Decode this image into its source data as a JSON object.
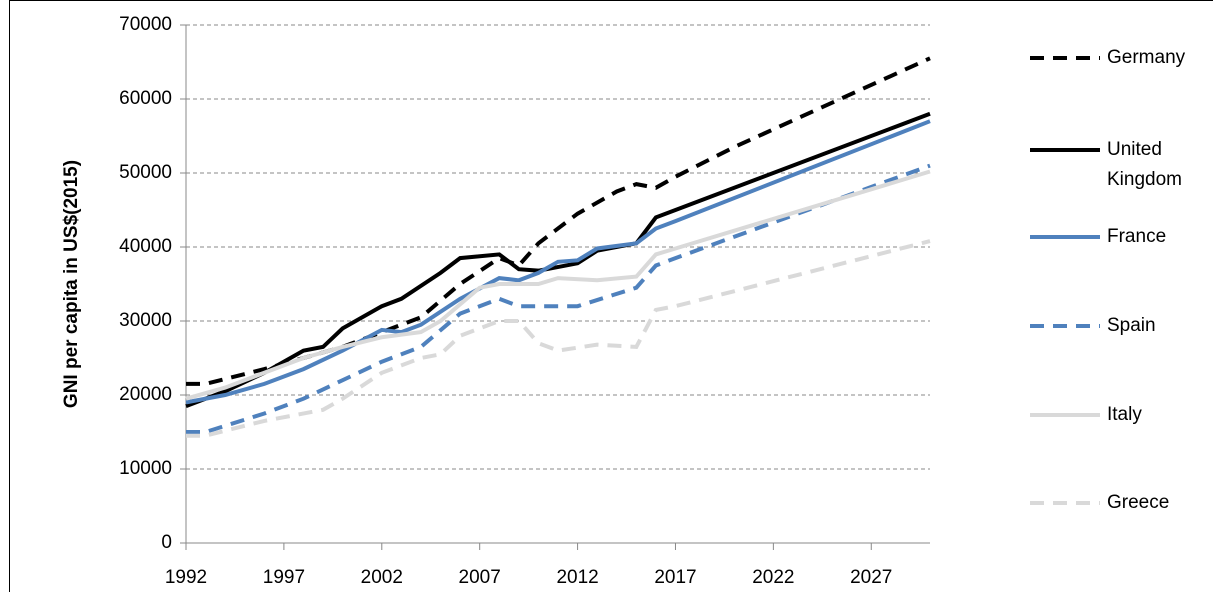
{
  "chart_data": {
    "type": "line",
    "ylabel": "GNI per capita in US$(2015)",
    "xlim": [
      1992,
      2030
    ],
    "xticks": [
      1992,
      1997,
      2002,
      2007,
      2012,
      2017,
      2022,
      2027
    ],
    "ylim": [
      0,
      70000
    ],
    "yticks": [
      0,
      10000,
      20000,
      30000,
      40000,
      50000,
      60000,
      70000
    ],
    "grid": true,
    "legend": "right",
    "series": [
      {
        "name": "Germany",
        "color": "#000000",
        "dashed": true,
        "x": [
          1992,
          1993,
          1996,
          1998,
          2000,
          2002,
          2004,
          2006,
          2008,
          2009,
          2010,
          2012,
          2014,
          2015,
          2016,
          2017,
          2020,
          2025,
          2030
        ],
        "values": [
          21500,
          21500,
          23500,
          25000,
          26500,
          28500,
          30500,
          35000,
          38500,
          37500,
          40500,
          44500,
          47500,
          48500,
          48000,
          49500,
          53500,
          59500,
          65500
        ]
      },
      {
        "name": "United Kingdom",
        "color": "#000000",
        "dashed": false,
        "x": [
          1992,
          1994,
          1996,
          1998,
          1999,
          2000,
          2002,
          2003,
          2005,
          2006,
          2008,
          2009,
          2010,
          2012,
          2013,
          2015,
          2016,
          2017,
          2030
        ],
        "values": [
          18500,
          20500,
          23000,
          26000,
          26500,
          29000,
          32000,
          33000,
          36500,
          38500,
          39000,
          37000,
          36800,
          37800,
          39500,
          40500,
          44000,
          45000,
          58000
        ]
      },
      {
        "name": "France",
        "color": "#4f81bd",
        "dashed": false,
        "x": [
          1992,
          1994,
          1996,
          1998,
          2000,
          2002,
          2003,
          2004,
          2006,
          2008,
          2009,
          2010,
          2011,
          2012,
          2013,
          2015,
          2016,
          2017,
          2030
        ],
        "values": [
          19000,
          20000,
          21500,
          23500,
          26000,
          28800,
          28500,
          29500,
          33000,
          35800,
          35500,
          36500,
          38000,
          38200,
          39800,
          40500,
          42500,
          43500,
          57000
        ]
      },
      {
        "name": "Spain",
        "color": "#4f81bd",
        "dashed": true,
        "x": [
          1992,
          1993,
          1996,
          1998,
          2000,
          2002,
          2004,
          2006,
          2008,
          2009,
          2012,
          2015,
          2016,
          2017,
          2030
        ],
        "values": [
          15000,
          15000,
          17500,
          19500,
          22000,
          24500,
          26500,
          31000,
          33000,
          32000,
          32000,
          34500,
          37500,
          38500,
          51000
        ]
      },
      {
        "name": "Italy",
        "color": "#d9d9d9",
        "dashed": false,
        "x": [
          1992,
          1994,
          1996,
          1998,
          2000,
          2002,
          2004,
          2005,
          2007,
          2008,
          2010,
          2011,
          2013,
          2015,
          2016,
          2017,
          2030
        ],
        "values": [
          19500,
          21000,
          23000,
          25000,
          26500,
          27800,
          28500,
          30000,
          34500,
          35000,
          35000,
          35800,
          35500,
          36000,
          39000,
          39800,
          50200
        ]
      },
      {
        "name": "Greece",
        "color": "#d9d9d9",
        "dashed": true,
        "x": [
          1992,
          1993,
          1996,
          1999,
          2000,
          2002,
          2004,
          2005,
          2006,
          2008,
          2009,
          2010,
          2011,
          2013,
          2015,
          2016,
          2017,
          2030
        ],
        "values": [
          14500,
          14500,
          16500,
          18000,
          19500,
          23000,
          25000,
          25500,
          28000,
          30000,
          30000,
          27000,
          26000,
          26800,
          26500,
          31500,
          32000,
          40800
        ]
      }
    ]
  }
}
